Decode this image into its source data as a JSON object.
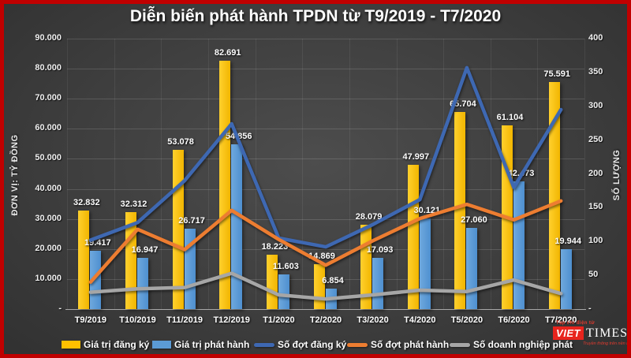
{
  "title": "Diễn biến phát hành TPDN từ T9/2019 - T7/2020",
  "left_axis": {
    "title": "ĐƠN VỊ: TỶ ĐỒNG",
    "max": 90000,
    "ticks": [
      {
        "value": 90000,
        "label": "90.000"
      },
      {
        "value": 80000,
        "label": "80.000"
      },
      {
        "value": 70000,
        "label": "70.000"
      },
      {
        "value": 60000,
        "label": "60.000"
      },
      {
        "value": 50000,
        "label": "50.000"
      },
      {
        "value": 40000,
        "label": "40.000"
      },
      {
        "value": 30000,
        "label": "30.000"
      },
      {
        "value": 20000,
        "label": "20.000"
      },
      {
        "value": 10000,
        "label": "10.000"
      },
      {
        "value": 0,
        "label": "-"
      }
    ]
  },
  "right_axis": {
    "title": "SỐ LƯỢNG",
    "max": 400,
    "ticks": [
      {
        "value": 400,
        "label": "400"
      },
      {
        "value": 350,
        "label": "350"
      },
      {
        "value": 300,
        "label": "300"
      },
      {
        "value": 250,
        "label": "250"
      },
      {
        "value": 200,
        "label": "200"
      },
      {
        "value": 150,
        "label": "150"
      },
      {
        "value": 100,
        "label": "100"
      },
      {
        "value": 50,
        "label": "50"
      },
      {
        "value": 0,
        "label": "-"
      }
    ]
  },
  "chart_data": {
    "type": "combo-bar-line",
    "grid": true,
    "legend_position": "bottom",
    "ylim_left": [
      0,
      90000
    ],
    "ylim_right": [
      0,
      400
    ],
    "categories": [
      "T9/2019",
      "T10/2019",
      "T11/2019",
      "T12/2019",
      "T1/2020",
      "T2/2020",
      "T3/2020",
      "T4/2020",
      "T5/2020",
      "T6/2020",
      "T7/2020"
    ],
    "series": [
      {
        "name": "Giá trị đăng ký",
        "type": "bar",
        "axis": "left",
        "color": "#FFC000",
        "values": [
          32832,
          32312,
          53078,
          82691,
          18223,
          14869,
          28079,
          47997,
          65704,
          61104,
          75591
        ],
        "labels": [
          "32.832",
          "32.312",
          "53.078",
          "82.691",
          "18.223",
          "14.869",
          "28.079",
          "47.997",
          "65.704",
          "61.104",
          "75.591"
        ]
      },
      {
        "name": "Giá trị phát hành",
        "type": "bar",
        "axis": "left",
        "color": "#5B9BD5",
        "values": [
          19417,
          16947,
          26717,
          54856,
          11603,
          6854,
          17093,
          30121,
          27060,
          42473,
          19944
        ],
        "labels": [
          "19.417",
          "16.947",
          "26.717",
          "54.856",
          "11.603",
          "6.854",
          "17.093",
          "30.121",
          "27.060",
          "42.473",
          "19.944"
        ]
      },
      {
        "name": "Số đợt đăng ký",
        "type": "line",
        "axis": "right",
        "color": "#3E68B2",
        "values": [
          102,
          128,
          190,
          274,
          105,
          92,
          125,
          162,
          357,
          180,
          295
        ]
      },
      {
        "name": "Số đợt phát hành",
        "type": "line",
        "axis": "right",
        "color": "#ED7D31",
        "values": [
          40,
          118,
          88,
          146,
          103,
          65,
          101,
          134,
          155,
          132,
          160
        ]
      },
      {
        "name": "Số doanh nghiệp phát hành",
        "type": "line",
        "axis": "right",
        "color": "#A6A6A6",
        "legend_label": "Số doanh nghiệp phát",
        "values": [
          25,
          30,
          32,
          53,
          21,
          15,
          21,
          28,
          26,
          43,
          23
        ]
      }
    ]
  },
  "logo": {
    "top_text": "Tạp chí điện tử",
    "box_text": "VIET",
    "name_text": "TIMES",
    "tagline": "Truyền thông trên nền tảng số"
  }
}
